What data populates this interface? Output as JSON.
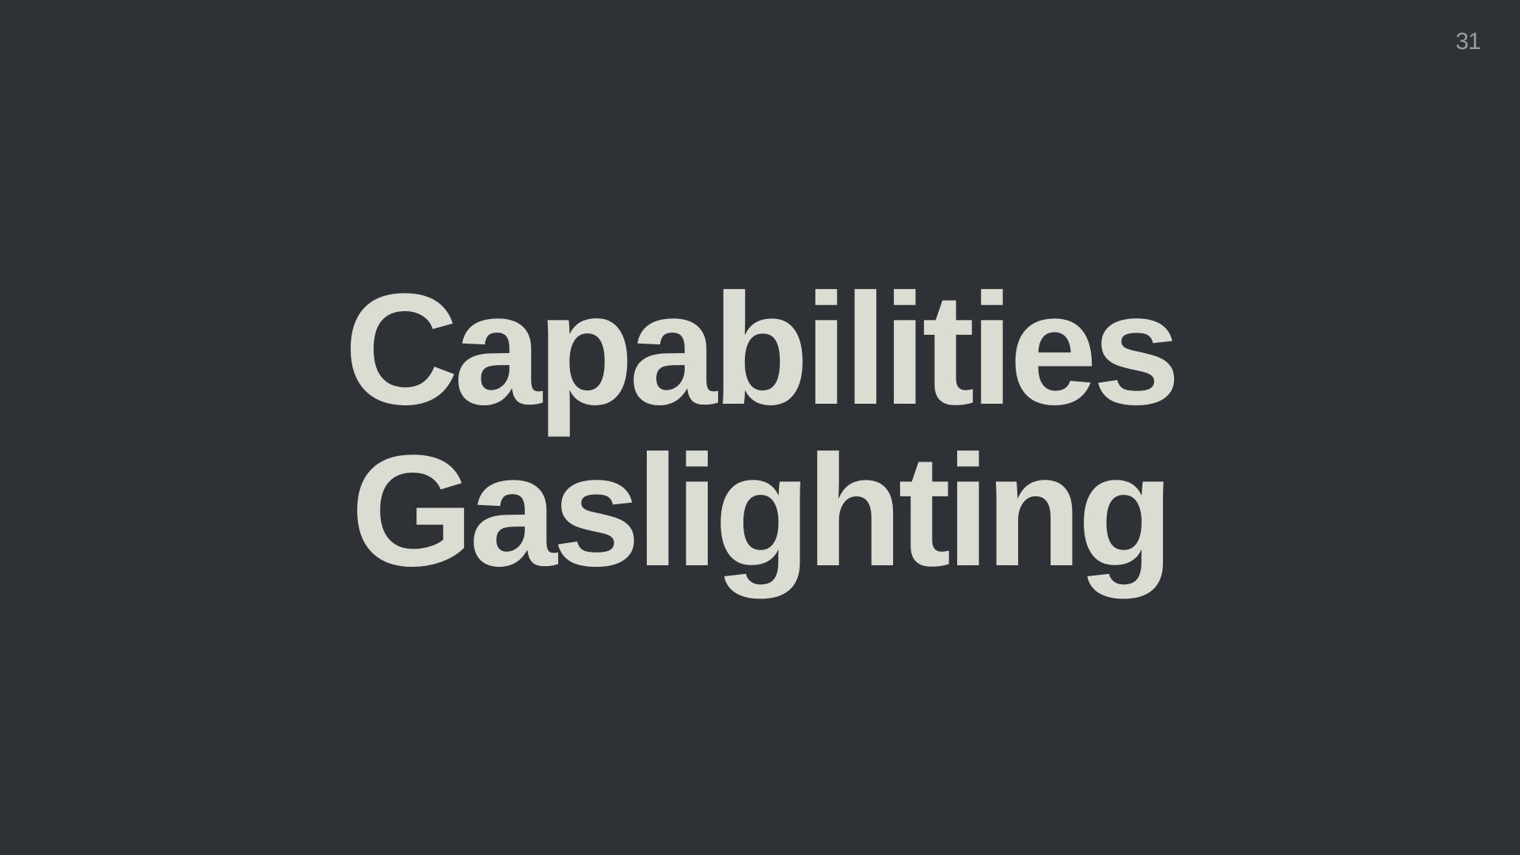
{
  "slide": {
    "number": "31",
    "title_lines": [
      "Capabilities",
      "Gaslighting"
    ],
    "colors": {
      "background": "#2e3236",
      "text": "#dcddd2",
      "page_number": "#9a9d99"
    }
  }
}
